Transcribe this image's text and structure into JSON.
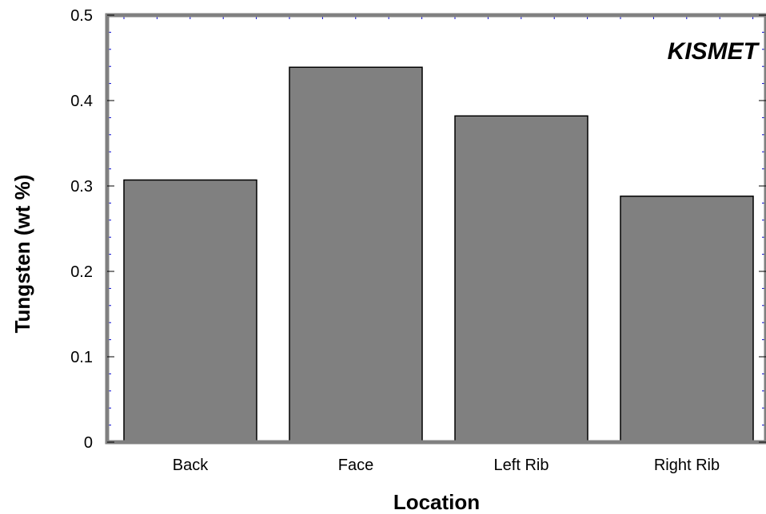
{
  "chart_data": {
    "type": "bar",
    "categories": [
      "Back",
      "Face",
      "Left Rib",
      "Right Rib"
    ],
    "values": [
      0.307,
      0.439,
      0.382,
      0.288
    ],
    "xlabel": "Location",
    "ylabel": "Tungsten (wt %)",
    "ylim": [
      0,
      0.5
    ],
    "yticks": [
      "0",
      "0.1",
      "0.2",
      "0.3",
      "0.4",
      "0.5"
    ],
    "annotation": "KISMET",
    "grid": false,
    "legend": "none",
    "colors": {
      "bar_fill": "#808080",
      "bar_stroke": "#000000",
      "frame": "#808080",
      "minor_ticks": "#0000cc"
    }
  }
}
